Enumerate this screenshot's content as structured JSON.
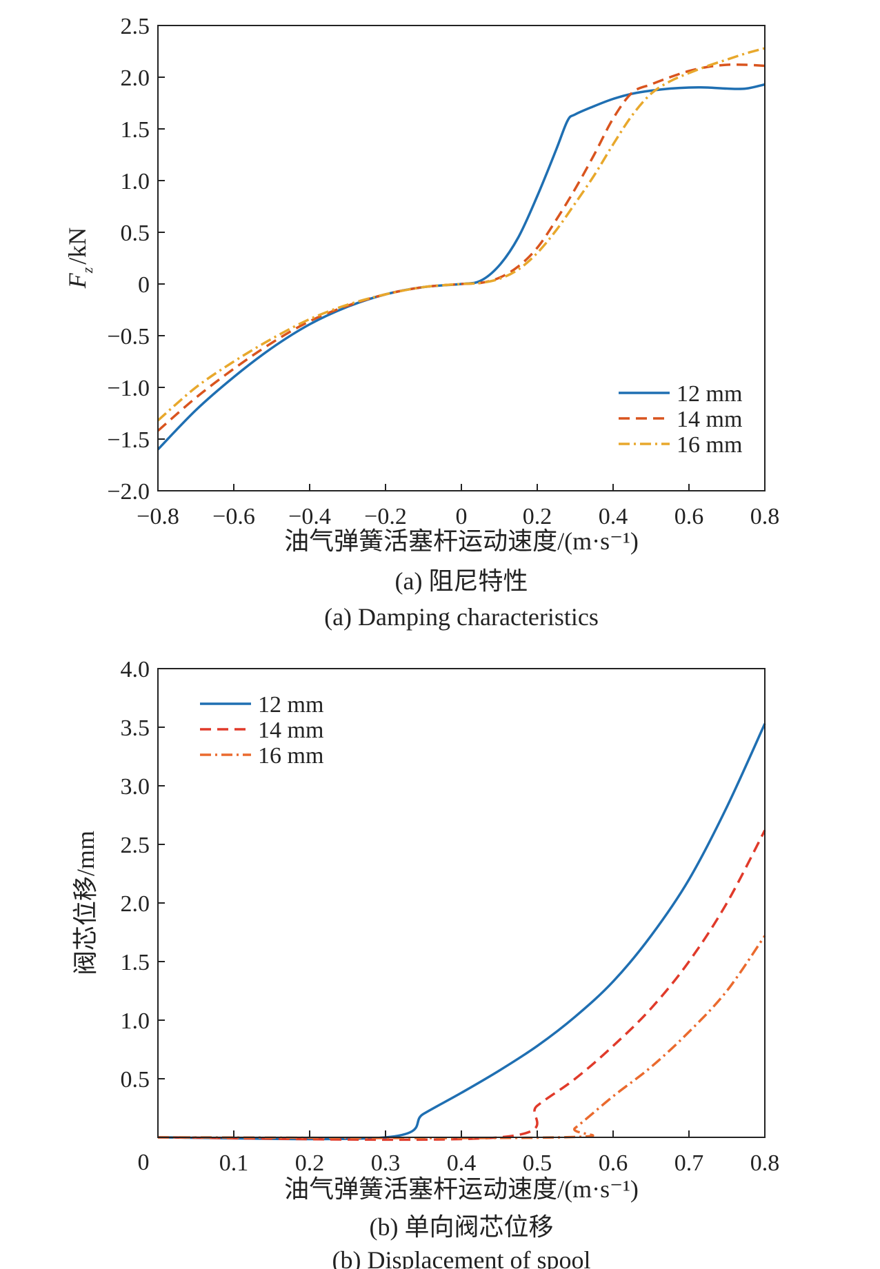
{
  "chart_data": [
    {
      "type": "line",
      "ylabel": "F_z /kN",
      "ylabel_main": "F",
      "ylabel_sub": "z",
      "ylabel_unit": "/kN",
      "xlabel": "油气弹簧活塞杆运动速度/(m·s⁻¹)",
      "caption_cn": "(a) 阻尼特性",
      "caption_en": "(a) Damping characteristics",
      "xlim": [
        -0.8,
        0.8
      ],
      "ylim": [
        -2.0,
        2.5
      ],
      "xticks": [
        -0.8,
        -0.6,
        -0.4,
        -0.2,
        0,
        0.2,
        0.4,
        0.6,
        0.8
      ],
      "xtick_labels": [
        "−0.8",
        "−0.6",
        "−0.4",
        "−0.2",
        "0",
        "0.2",
        "0.4",
        "0.6",
        "0.8"
      ],
      "yticks": [
        -2.0,
        -1.5,
        -1.0,
        -0.5,
        0,
        0.5,
        1.0,
        1.5,
        2.0,
        2.5
      ],
      "ytick_labels": [
        "−2.0",
        "−1.5",
        "−1.0",
        "−0.5",
        "0",
        "0.5",
        "1.0",
        "1.5",
        "2.0",
        "2.5"
      ],
      "legend_position": "bottom-right",
      "grid": false,
      "series": [
        {
          "name": "12 mm",
          "color": "#1f6fb2",
          "dash": "solid",
          "x": [
            -0.8,
            -0.7,
            -0.6,
            -0.5,
            -0.4,
            -0.3,
            -0.2,
            -0.1,
            0,
            0.05,
            0.1,
            0.15,
            0.2,
            0.25,
            0.28,
            0.3,
            0.35,
            0.4,
            0.45,
            0.5,
            0.55,
            0.6,
            0.65,
            0.7,
            0.75,
            0.8
          ],
          "y": [
            -1.6,
            -1.22,
            -0.9,
            -0.62,
            -0.39,
            -0.22,
            -0.1,
            -0.03,
            0,
            0.03,
            0.18,
            0.45,
            0.85,
            1.3,
            1.58,
            1.64,
            1.72,
            1.79,
            1.84,
            1.87,
            1.89,
            1.9,
            1.9,
            1.89,
            1.89,
            1.93
          ]
        },
        {
          "name": "14 mm",
          "color": "#d9541e",
          "dash": "dashed",
          "x": [
            -0.8,
            -0.7,
            -0.6,
            -0.5,
            -0.4,
            -0.3,
            -0.2,
            -0.1,
            0,
            0.05,
            0.1,
            0.15,
            0.2,
            0.25,
            0.3,
            0.35,
            0.4,
            0.45,
            0.5,
            0.55,
            0.6,
            0.65,
            0.7,
            0.75,
            0.8
          ],
          "y": [
            -1.42,
            -1.1,
            -0.82,
            -0.57,
            -0.36,
            -0.21,
            -0.1,
            -0.03,
            0,
            0.01,
            0.06,
            0.17,
            0.35,
            0.62,
            0.92,
            1.25,
            1.6,
            1.85,
            1.93,
            2.0,
            2.06,
            2.1,
            2.12,
            2.12,
            2.11
          ]
        },
        {
          "name": "16 mm",
          "color": "#e8a82c",
          "dash": "dashdot",
          "x": [
            -0.8,
            -0.7,
            -0.6,
            -0.5,
            -0.4,
            -0.3,
            -0.2,
            -0.1,
            0,
            0.05,
            0.1,
            0.15,
            0.2,
            0.25,
            0.3,
            0.35,
            0.4,
            0.45,
            0.5,
            0.55,
            0.6,
            0.65,
            0.7,
            0.75,
            0.8
          ],
          "y": [
            -1.32,
            -1.0,
            -0.75,
            -0.53,
            -0.34,
            -0.2,
            -0.1,
            -0.03,
            0,
            0.01,
            0.05,
            0.14,
            0.3,
            0.52,
            0.78,
            1.05,
            1.35,
            1.63,
            1.84,
            1.96,
            2.04,
            2.11,
            2.17,
            2.23,
            2.28
          ]
        }
      ]
    },
    {
      "type": "line",
      "ylabel": "阀芯位移/mm",
      "xlabel": "油气弹簧活塞杆运动速度/(m·s⁻¹)",
      "caption_cn": "(b) 单向阀芯位移",
      "caption_en": "(b) Displacement of spool",
      "xlim": [
        0,
        0.8
      ],
      "ylim": [
        0,
        4.0
      ],
      "xticks": [
        0,
        0.1,
        0.2,
        0.3,
        0.4,
        0.5,
        0.6,
        0.7,
        0.8
      ],
      "xtick_labels": [
        "0",
        "0.1",
        "0.2",
        "0.3",
        "0.4",
        "0.5",
        "0.6",
        "0.7",
        "0.8"
      ],
      "yticks": [
        0.5,
        1.0,
        1.5,
        2.0,
        2.5,
        3.0,
        3.5,
        4.0
      ],
      "ytick_labels": [
        "0.5",
        "1.0",
        "1.5",
        "2.0",
        "2.5",
        "3.0",
        "3.5",
        "4.0"
      ],
      "legend_position": "top-left",
      "grid": false,
      "series": [
        {
          "name": "12 mm",
          "color": "#1f6fb2",
          "dash": "solid",
          "x": [
            0,
            0.3,
            0.35,
            0.4,
            0.45,
            0.5,
            0.55,
            0.6,
            0.65,
            0.7,
            0.75,
            0.8
          ],
          "y": [
            0,
            0,
            0.2,
            0.38,
            0.57,
            0.78,
            1.03,
            1.33,
            1.72,
            2.2,
            2.82,
            3.53
          ]
        },
        {
          "name": "14 mm",
          "color": "#e03a2a",
          "dash": "dashed",
          "x": [
            0,
            0.45,
            0.5,
            0.55,
            0.6,
            0.65,
            0.7,
            0.75,
            0.8
          ],
          "y": [
            0,
            0,
            0.27,
            0.5,
            0.78,
            1.1,
            1.5,
            2.0,
            2.62
          ]
        },
        {
          "name": "16 mm",
          "color": "#ea6a2e",
          "dash": "dashdot",
          "x": [
            0,
            0.53,
            0.55,
            0.6,
            0.65,
            0.7,
            0.75,
            0.8
          ],
          "y": [
            0,
            0,
            0.08,
            0.35,
            0.6,
            0.9,
            1.25,
            1.72
          ]
        }
      ]
    }
  ],
  "x_origin_label_b": "0"
}
